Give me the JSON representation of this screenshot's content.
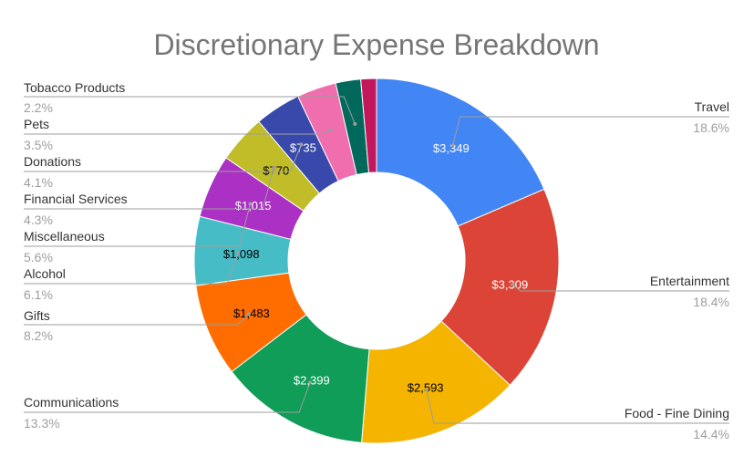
{
  "chart_data": {
    "type": "pie",
    "donut": true,
    "title": "Discretionary Expense Breakdown",
    "slices": [
      {
        "name": "Travel",
        "value": 3349,
        "label": "$3,349",
        "percent": "18.6%",
        "color": "#4285f4",
        "text_color": "#ffffff"
      },
      {
        "name": "Entertainment",
        "value": 3309,
        "label": "$3,309",
        "percent": "18.4%",
        "color": "#db4437",
        "text_color": "#ffffff"
      },
      {
        "name": "Food - Fine Dining",
        "value": 2593,
        "label": "$2,593",
        "percent": "14.4%",
        "color": "#f4b400",
        "text_color": "#000000"
      },
      {
        "name": "Communications",
        "value": 2399,
        "label": "$2,399",
        "percent": "13.3%",
        "color": "#0f9d58",
        "text_color": "#ffffff"
      },
      {
        "name": "Gifts",
        "value": 1483,
        "label": "$1,483",
        "percent": "8.2%",
        "color": "#ff6d00",
        "text_color": "#000000"
      },
      {
        "name": "Alcohol",
        "value": 1098,
        "label": "$1,098",
        "percent": "6.1%",
        "color": "#46bdc6",
        "text_color": "#000000"
      },
      {
        "name": "Miscellaneous",
        "value": 1015,
        "label": "$1,015",
        "percent": "5.6%",
        "color": "#ab30c4",
        "text_color": "#ffffff"
      },
      {
        "name": "Financial Services",
        "value": 770,
        "label": "$770",
        "percent": "4.3%",
        "color": "#c0bd28",
        "text_color": "#000000"
      },
      {
        "name": "Donations",
        "value": 735,
        "label": "$735",
        "percent": "4.1%",
        "color": "#3949ab",
        "text_color": "#ffffff"
      },
      {
        "name": "Pets",
        "value": 630,
        "label": "",
        "percent": "3.5%",
        "color": "#f06dae",
        "text_color": "#ffffff"
      },
      {
        "name": "Tobacco Products",
        "value": 400,
        "label": "",
        "percent": "2.2%",
        "color": "#00695c",
        "text_color": "#ffffff"
      },
      {
        "name": "",
        "value": 250,
        "label": "",
        "percent": "",
        "color": "#c2185b",
        "text_color": "#ffffff"
      }
    ]
  }
}
